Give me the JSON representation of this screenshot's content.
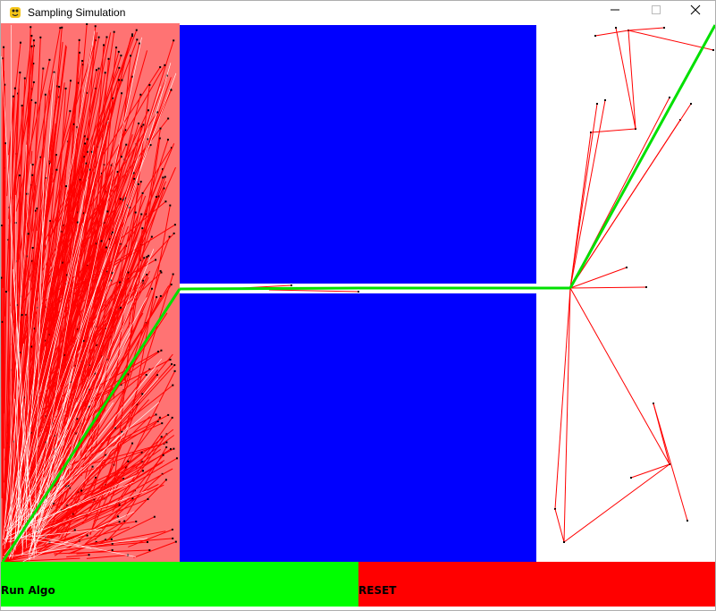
{
  "window": {
    "title": "Sampling Simulation",
    "app_icon": "python-snake-icon",
    "controls": [
      "minimize-icon",
      "maximize-icon",
      "close-icon"
    ]
  },
  "scene": {
    "background_color": "#ffffff",
    "obstacle_color": "#0000ff",
    "edge_color": "#ff0000",
    "path_color": "#00e000",
    "node_color": "#000000"
  },
  "buttons": {
    "run_label": "Run Algo",
    "run_color": "#00ff00",
    "reset_label": "RESET",
    "reset_color": "#ff0000"
  }
}
